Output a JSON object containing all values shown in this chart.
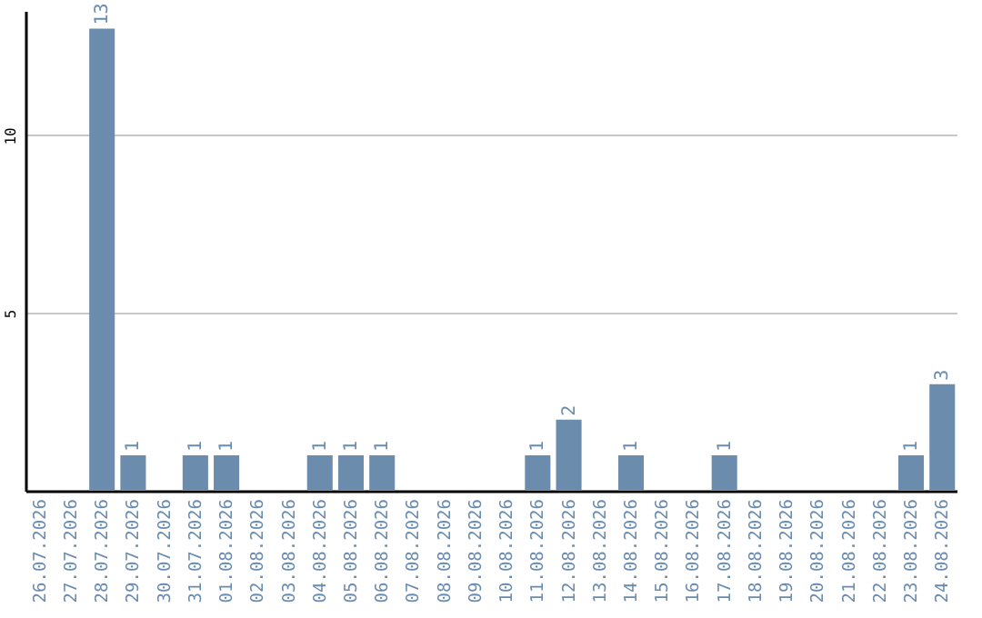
{
  "chart_data": {
    "type": "bar",
    "categories": [
      "26.07.2026",
      "27.07.2026",
      "28.07.2026",
      "29.07.2026",
      "30.07.2026",
      "31.07.2026",
      "01.08.2026",
      "02.08.2026",
      "03.08.2026",
      "04.08.2026",
      "05.08.2026",
      "06.08.2026",
      "07.08.2026",
      "08.08.2026",
      "09.08.2026",
      "10.08.2026",
      "11.08.2026",
      "12.08.2026",
      "13.08.2026",
      "14.08.2026",
      "15.08.2026",
      "16.08.2026",
      "17.08.2026",
      "18.08.2026",
      "19.08.2026",
      "20.08.2026",
      "21.08.2026",
      "22.08.2026",
      "23.08.2026",
      "24.08.2026"
    ],
    "values": [
      0,
      0,
      13,
      1,
      0,
      1,
      1,
      0,
      0,
      1,
      1,
      1,
      0,
      0,
      0,
      0,
      1,
      2,
      0,
      1,
      0,
      0,
      1,
      0,
      0,
      0,
      0,
      0,
      1,
      3
    ],
    "value_labels": [
      null,
      null,
      "13",
      "1",
      null,
      "1",
      "1",
      null,
      null,
      "1",
      "1",
      "1",
      null,
      null,
      null,
      null,
      "1",
      "2",
      null,
      "1",
      null,
      null,
      "1",
      null,
      null,
      null,
      null,
      null,
      "1",
      "3"
    ],
    "color": "#6b8cac",
    "ylim": [
      0,
      13.5
    ],
    "yticks": [
      5,
      10
    ],
    "grid": "y"
  }
}
